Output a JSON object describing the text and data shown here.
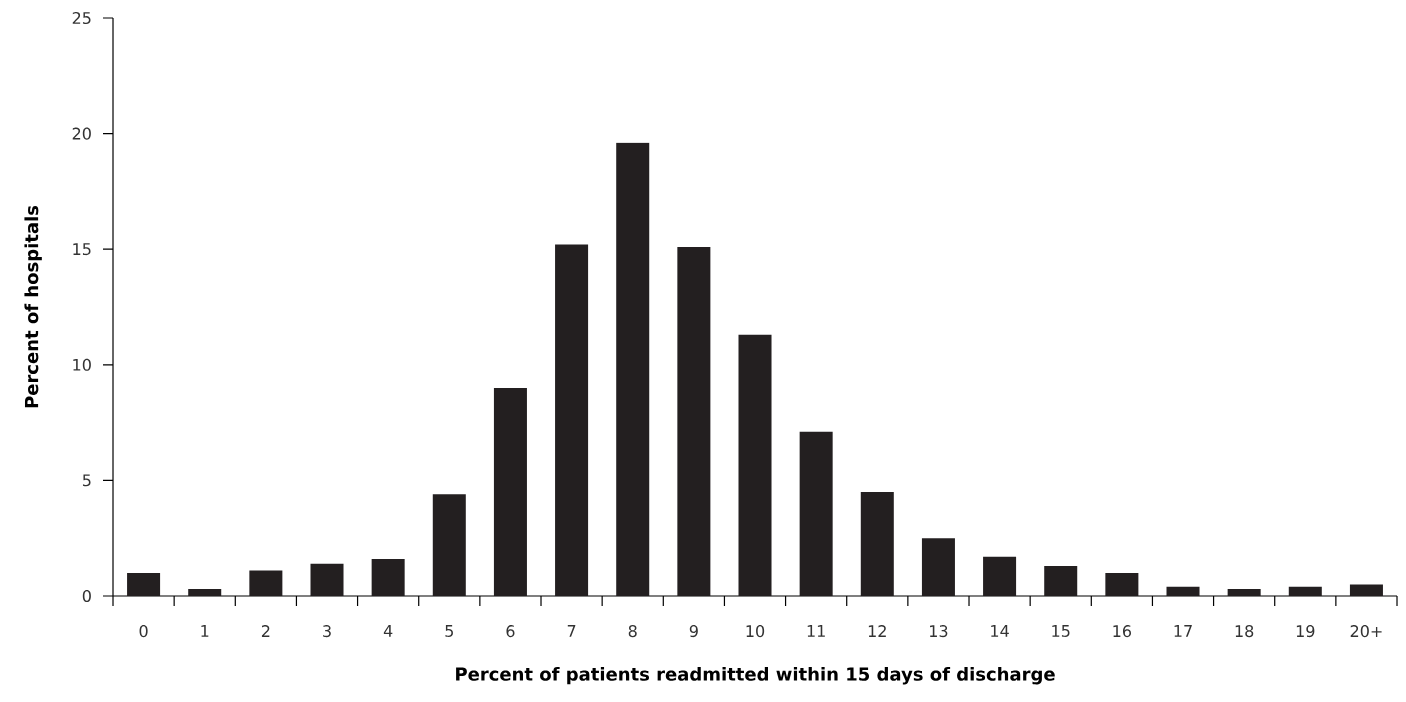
{
  "chart_data": {
    "type": "bar",
    "xlabel": "Percent of patients readmitted within 15 days of discharge",
    "ylabel": "Percent of hospitals",
    "categories": [
      "0",
      "1",
      "2",
      "3",
      "4",
      "5",
      "6",
      "7",
      "8",
      "9",
      "10",
      "11",
      "12",
      "13",
      "14",
      "15",
      "16",
      "17",
      "18",
      "19",
      "20+"
    ],
    "values": [
      1.0,
      0.3,
      1.1,
      1.4,
      1.6,
      4.4,
      9.0,
      15.2,
      19.6,
      15.1,
      11.3,
      7.1,
      4.5,
      2.5,
      1.7,
      1.3,
      1.0,
      0.4,
      0.3,
      0.4,
      0.5
    ],
    "color": "#231f20",
    "ylim": [
      0,
      25
    ],
    "yticks": [
      0,
      5,
      10,
      15,
      20,
      25
    ]
  }
}
